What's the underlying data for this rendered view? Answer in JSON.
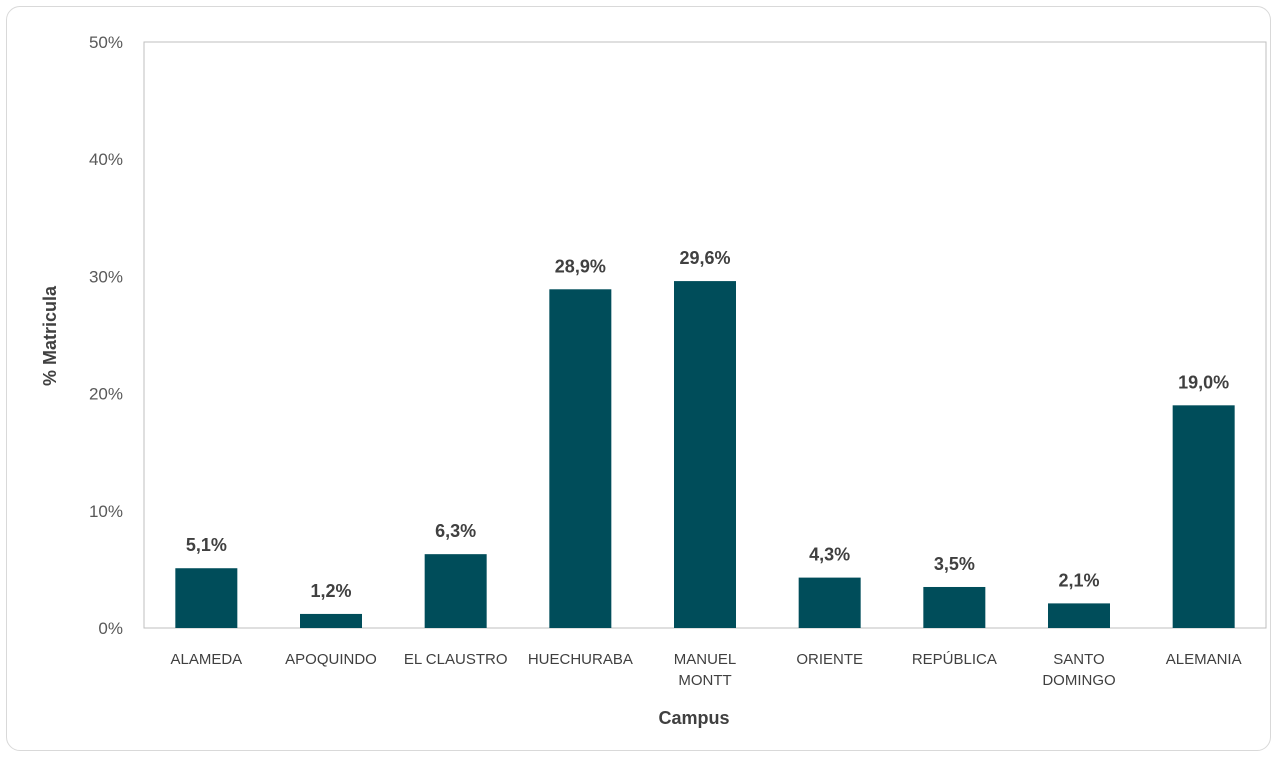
{
  "chart_data": {
    "type": "bar",
    "title": "",
    "xlabel": "Campus",
    "ylabel": "% Matricula",
    "categories": [
      [
        "ALAMEDA"
      ],
      [
        "APOQUINDO"
      ],
      [
        "EL CLAUSTRO"
      ],
      [
        "HUECHURABA"
      ],
      [
        "MANUEL",
        "MONTT"
      ],
      [
        "ORIENTE"
      ],
      [
        "REPÚBLICA"
      ],
      [
        "SANTO",
        "DOMINGO"
      ],
      [
        "ALEMANIA"
      ]
    ],
    "values": [
      5.1,
      1.2,
      6.3,
      28.9,
      29.6,
      4.3,
      3.5,
      2.1,
      19.0
    ],
    "data_labels": [
      "5,1%",
      "1,2%",
      "6,3%",
      "28,9%",
      "29,6%",
      "4,3%",
      "3,5%",
      "2,1%",
      "19,0%"
    ],
    "ylim": [
      0,
      50
    ],
    "y_ticks": [
      0,
      10,
      20,
      30,
      40,
      50
    ],
    "y_tick_labels": [
      "0%",
      "10%",
      "20%",
      "30%",
      "40%",
      "50%"
    ],
    "grid": false,
    "legend": "none",
    "bar_color": "#004d5a",
    "axis_color": "#bfbfbf"
  }
}
